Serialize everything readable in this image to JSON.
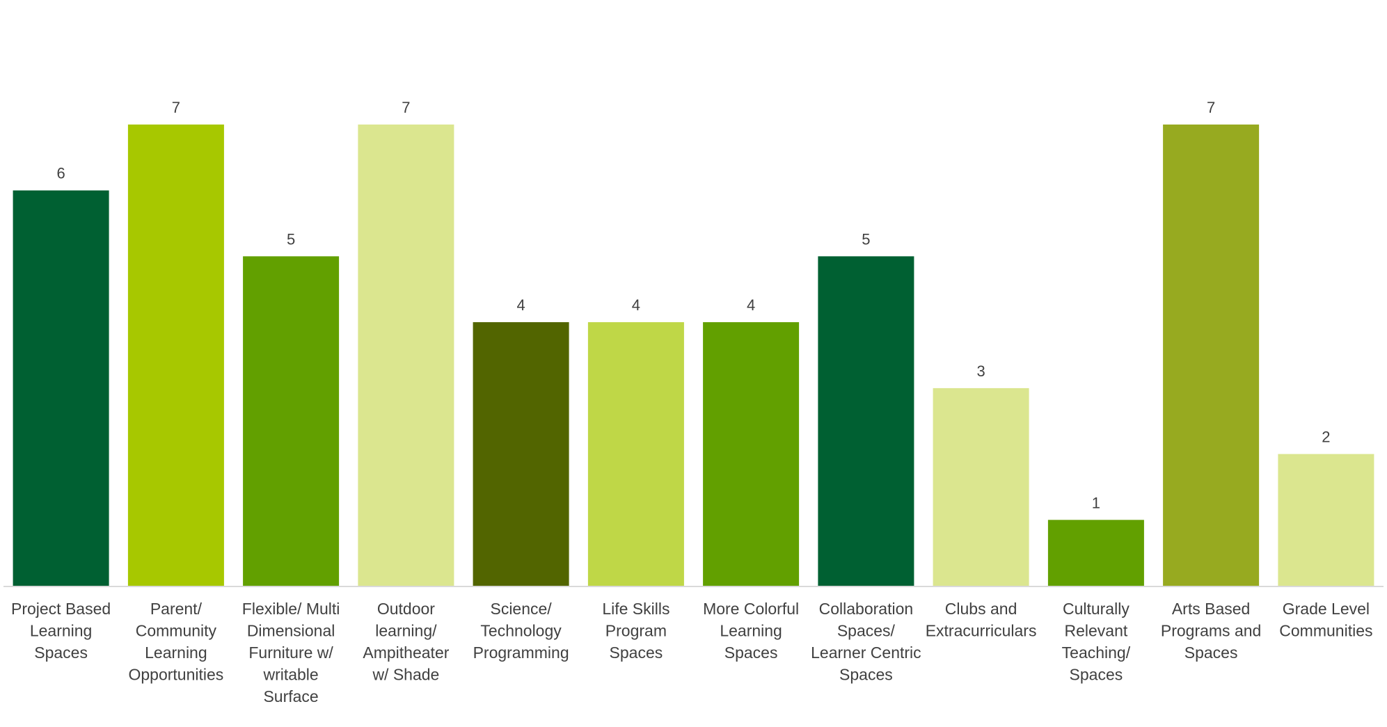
{
  "chart_data": {
    "type": "bar",
    "title": "",
    "xlabel": "",
    "ylabel": "",
    "ylim": [
      0,
      7
    ],
    "grid": false,
    "legend": "none",
    "show_data_labels": true,
    "categories": [
      "Project Based Learning Spaces",
      "Parent/ Community Learning Opportunities",
      "Flexible/ Multi Dimensional Furniture w/ writable Surface",
      "Outdoor learning/ Ampitheater w/ Shade",
      "Science/ Technology Programming",
      "Life Skills Program Spaces",
      "More Colorful Learning Spaces",
      "Collaboration Spaces/ Learner Centric Spaces",
      "Clubs and Extracurriculars",
      "Culturally Relevant Teaching/ Spaces",
      "Arts Based Programs and Spaces",
      "Grade Level Communities"
    ],
    "category_lines": [
      [
        "Project Based",
        "Learning",
        "Spaces"
      ],
      [
        "Parent/",
        "Community",
        "Learning",
        "Opportunities"
      ],
      [
        "Flexible/ Multi",
        "Dimensional",
        "Furniture w/",
        "writable",
        "Surface"
      ],
      [
        "Outdoor",
        "learning/",
        "Ampitheater",
        "w/ Shade"
      ],
      [
        "Science/",
        "Technology",
        "Programming"
      ],
      [
        "Life Skills",
        "Program",
        "Spaces"
      ],
      [
        "More Colorful",
        "Learning",
        "Spaces"
      ],
      [
        "Collaboration",
        "Spaces/",
        "Learner Centric",
        "Spaces"
      ],
      [
        "Clubs and",
        "Extracurriculars"
      ],
      [
        "Culturally",
        "Relevant",
        "Teaching/",
        "Spaces"
      ],
      [
        "Arts Based",
        "Programs and",
        "Spaces"
      ],
      [
        "Grade Level",
        "Communities"
      ]
    ],
    "values": [
      6,
      7,
      5,
      7,
      4,
      4,
      4,
      5,
      3,
      1,
      7,
      2
    ],
    "colors": [
      "#006032",
      "#a7c800",
      "#62a000",
      "#dbe68f",
      "#526500",
      "#bfd747",
      "#62a000",
      "#006032",
      "#dbe68f",
      "#62a000",
      "#97aa20",
      "#dbe68f"
    ],
    "axis_color": "#d9d9d9",
    "label_color": "#404040"
  }
}
